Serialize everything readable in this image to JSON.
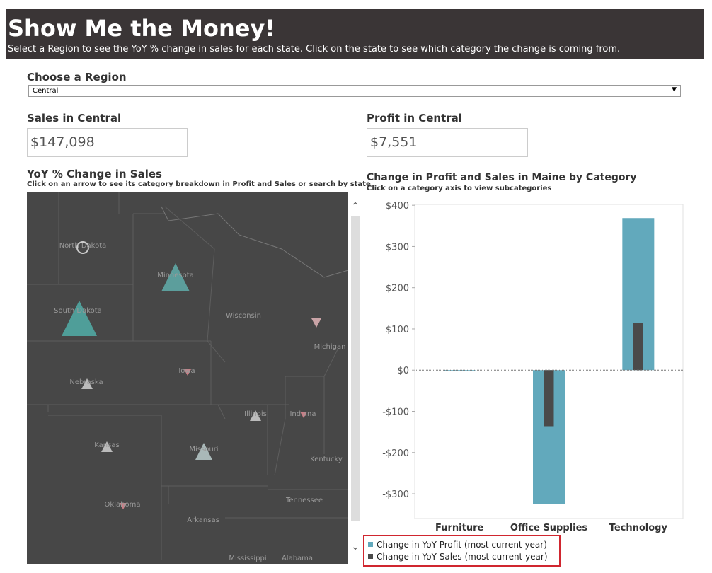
{
  "header": {
    "title": "Show Me the Money!",
    "subtitle": "Select a Region to see the YoY % change in sales for each state. Click on the state to see which category the change is coming from."
  },
  "region_filter": {
    "label": "Choose a Region",
    "selected": "Central"
  },
  "kpis": [
    {
      "label": "Sales in Central",
      "value": "$147,098"
    },
    {
      "label": "Profit in Central",
      "value": "$7,551"
    }
  ],
  "map": {
    "title": "YoY % Change in Sales",
    "subtitle": "Click on an arrow to see its category breakdown in Profit and Sales or search by state",
    "states": [
      "North Dakota",
      "Minnesota",
      "South Dakota",
      "Wisconsin",
      "Michigan",
      "Nebraska",
      "Iowa",
      "Illinois",
      "Indiana",
      "Kansas",
      "Missouri",
      "Kentucky",
      "Oklahoma",
      "Tennessee",
      "Arkansas",
      "Mississippi",
      "Alabama"
    ]
  },
  "chart_data": {
    "type": "bar",
    "title": "Change in Profit and Sales in Maine by Category",
    "subtitle": "Click on a category axis to view subcategories",
    "categories": [
      "Furniture",
      "Office Supplies",
      "Technology"
    ],
    "series": [
      {
        "name": "Change in YoY Profit (most current year)",
        "color": "#62a9bc",
        "values": [
          -1,
          -325,
          369
        ]
      },
      {
        "name": "Change in YoY Sales (most current year)",
        "color": "#4a4a4a",
        "values": [
          0,
          -136,
          115
        ]
      }
    ],
    "ylim": [
      -360,
      402
    ],
    "yticks": [
      {
        "value": 400,
        "label": "$400"
      },
      {
        "value": 300,
        "label": "$300"
      },
      {
        "value": 200,
        "label": "$200"
      },
      {
        "value": 100,
        "label": "$100"
      },
      {
        "value": 0,
        "label": "$0"
      },
      {
        "value": -100,
        "label": "-$100"
      },
      {
        "value": -200,
        "label": "-$200"
      },
      {
        "value": -300,
        "label": "-$300"
      }
    ]
  }
}
